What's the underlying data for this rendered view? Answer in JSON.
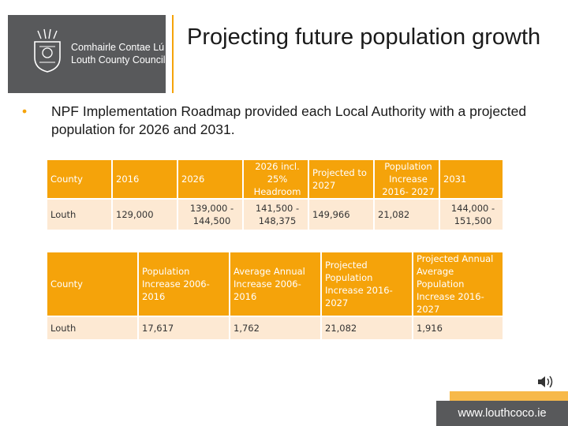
{
  "header": {
    "council_irish": "Comhairle Contae Lú",
    "council_english": "Louth County Council",
    "title": "Projecting future population growth"
  },
  "bullet": {
    "text": "NPF Implementation Roadmap provided each Local Authority with a projected population for 2026 and 2031."
  },
  "table1": {
    "headers": [
      "County",
      "2016",
      "2026",
      "2026 incl. 25% Headroom",
      "Projected to 2027",
      "Population Increase 2016- 2027",
      "2031"
    ],
    "rows": [
      [
        "Louth",
        "129,000",
        "139,000 - 144,500",
        "141,500 - 148,375",
        "149,966",
        "21,082",
        "144,000 - 151,500"
      ]
    ]
  },
  "table2": {
    "headers": [
      "County",
      "Population Increase 2006-2016",
      "Average Annual Increase 2006-2016",
      "Projected Population Increase 2016-2027",
      "Projected Annual Average Population Increase 2016-2027"
    ],
    "rows": [
      [
        "Louth",
        "17,617",
        "1,762",
        "21,082",
        "1,916"
      ]
    ]
  },
  "footer": {
    "url": "www.louthcoco.ie"
  },
  "icons": {
    "crest": "council-crest-icon",
    "speaker": "speaker-icon"
  },
  "colors": {
    "accent": "#f5a30a",
    "dark": "#58595b",
    "cell": "#fde9d3"
  }
}
